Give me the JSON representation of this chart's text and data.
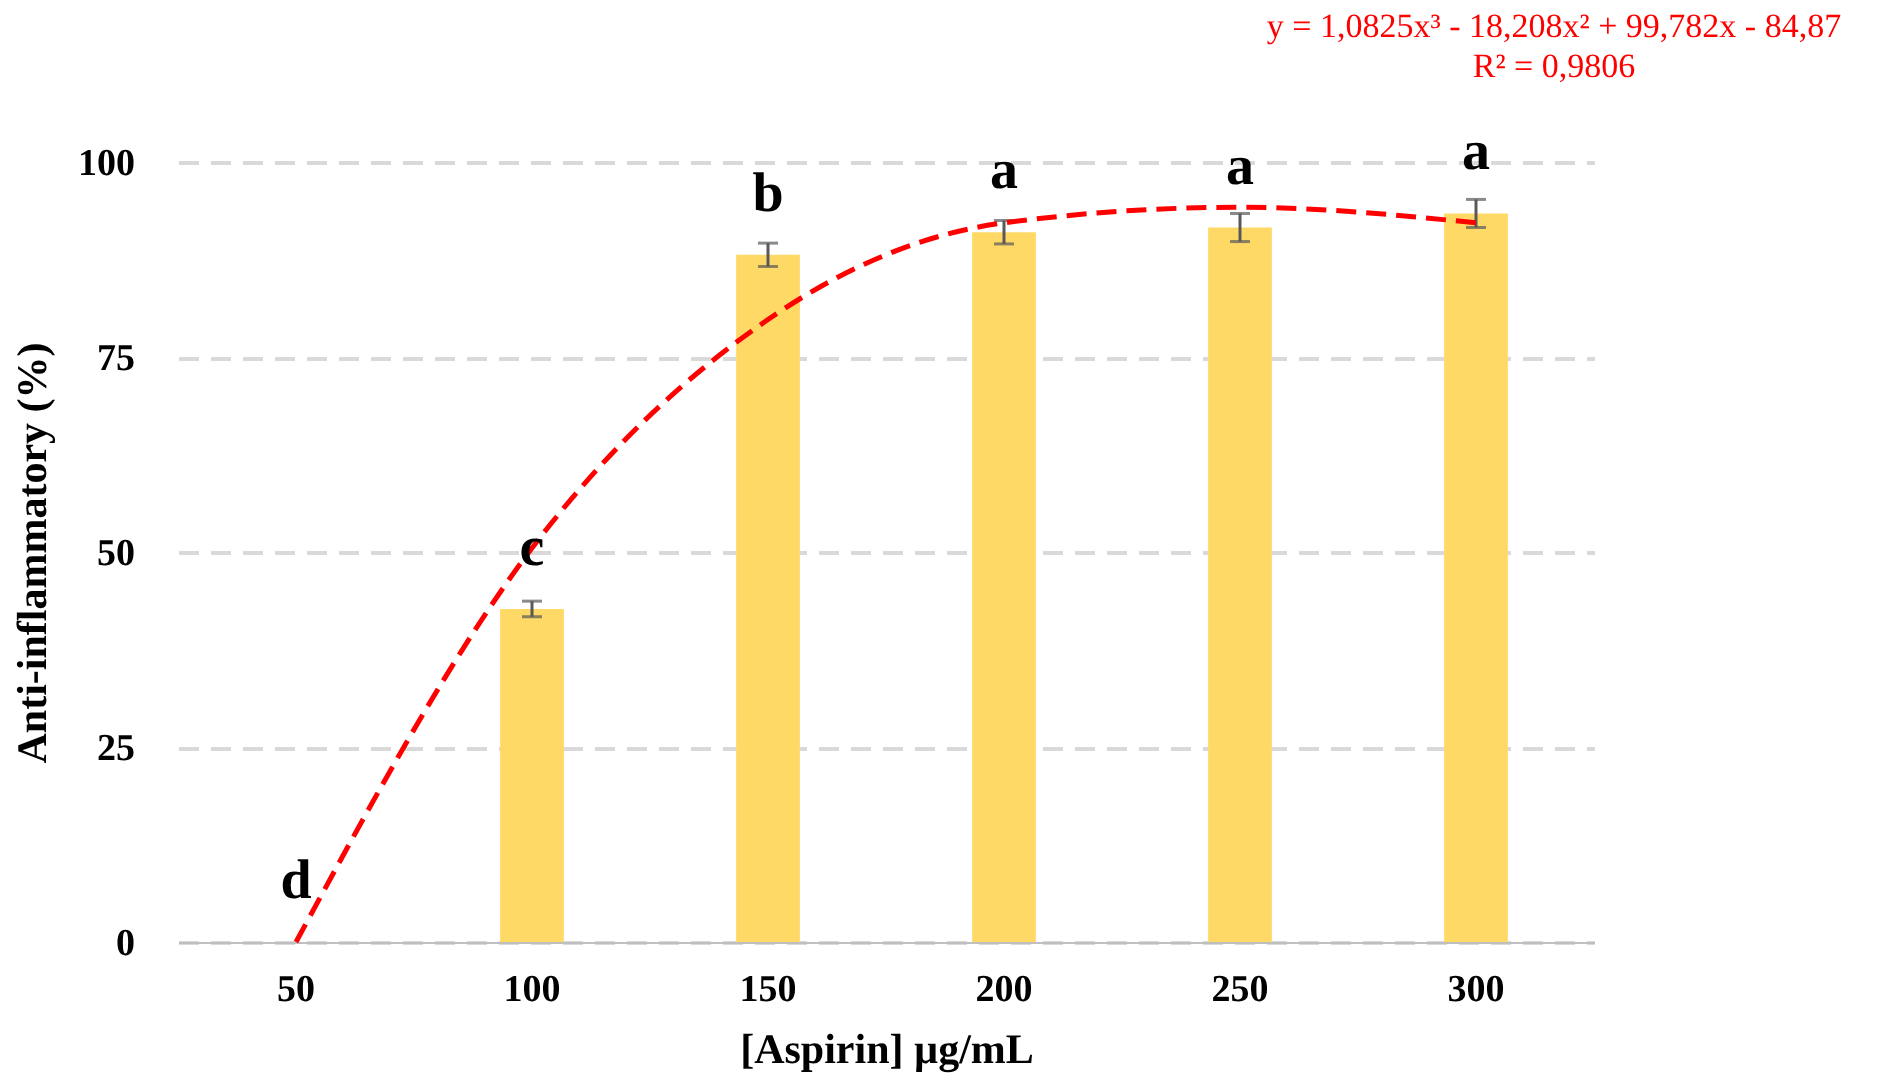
{
  "chart_data": {
    "type": "bar",
    "xlabel": "[Aspirin] µg/mL",
    "ylabel": "Anti-inflammatory (%)",
    "categories": [
      "50",
      "100",
      "150",
      "200",
      "250",
      "300"
    ],
    "series": [
      {
        "color": "#ffd966",
        "values": [
          0,
          42.7,
          88.1,
          91,
          91.6,
          93.4
        ],
        "errors": [
          null,
          1,
          1.5,
          1.5,
          1.8,
          1.8
        ]
      },
      {
        "type": "line",
        "color": "#ff0000",
        "line_style": "dashed",
        "marker": "none",
        "values": [
          0,
          50.5,
          79.8,
          92.2,
          94.2,
          92.2
        ]
      }
    ],
    "ylim": [
      0,
      100
    ],
    "yticks": [
      0,
      25,
      50,
      75,
      100
    ],
    "grid": "y",
    "legend": false,
    "annotations": [
      {
        "text": "d",
        "x": "50",
        "y": 0
      },
      {
        "text": "c",
        "x": "100",
        "y": 42.7
      },
      {
        "text": "b",
        "x": "150",
        "y": 88.1
      },
      {
        "text": "a",
        "x": "200",
        "y": 91
      },
      {
        "text": "a",
        "x": "250",
        "y": 91.6
      },
      {
        "text": "a",
        "x": "300",
        "y": 93.4
      },
      "y = 1,0825x³ - 18,208x² + 99,782x - 84,87",
      "R² = 0,9806"
    ]
  }
}
